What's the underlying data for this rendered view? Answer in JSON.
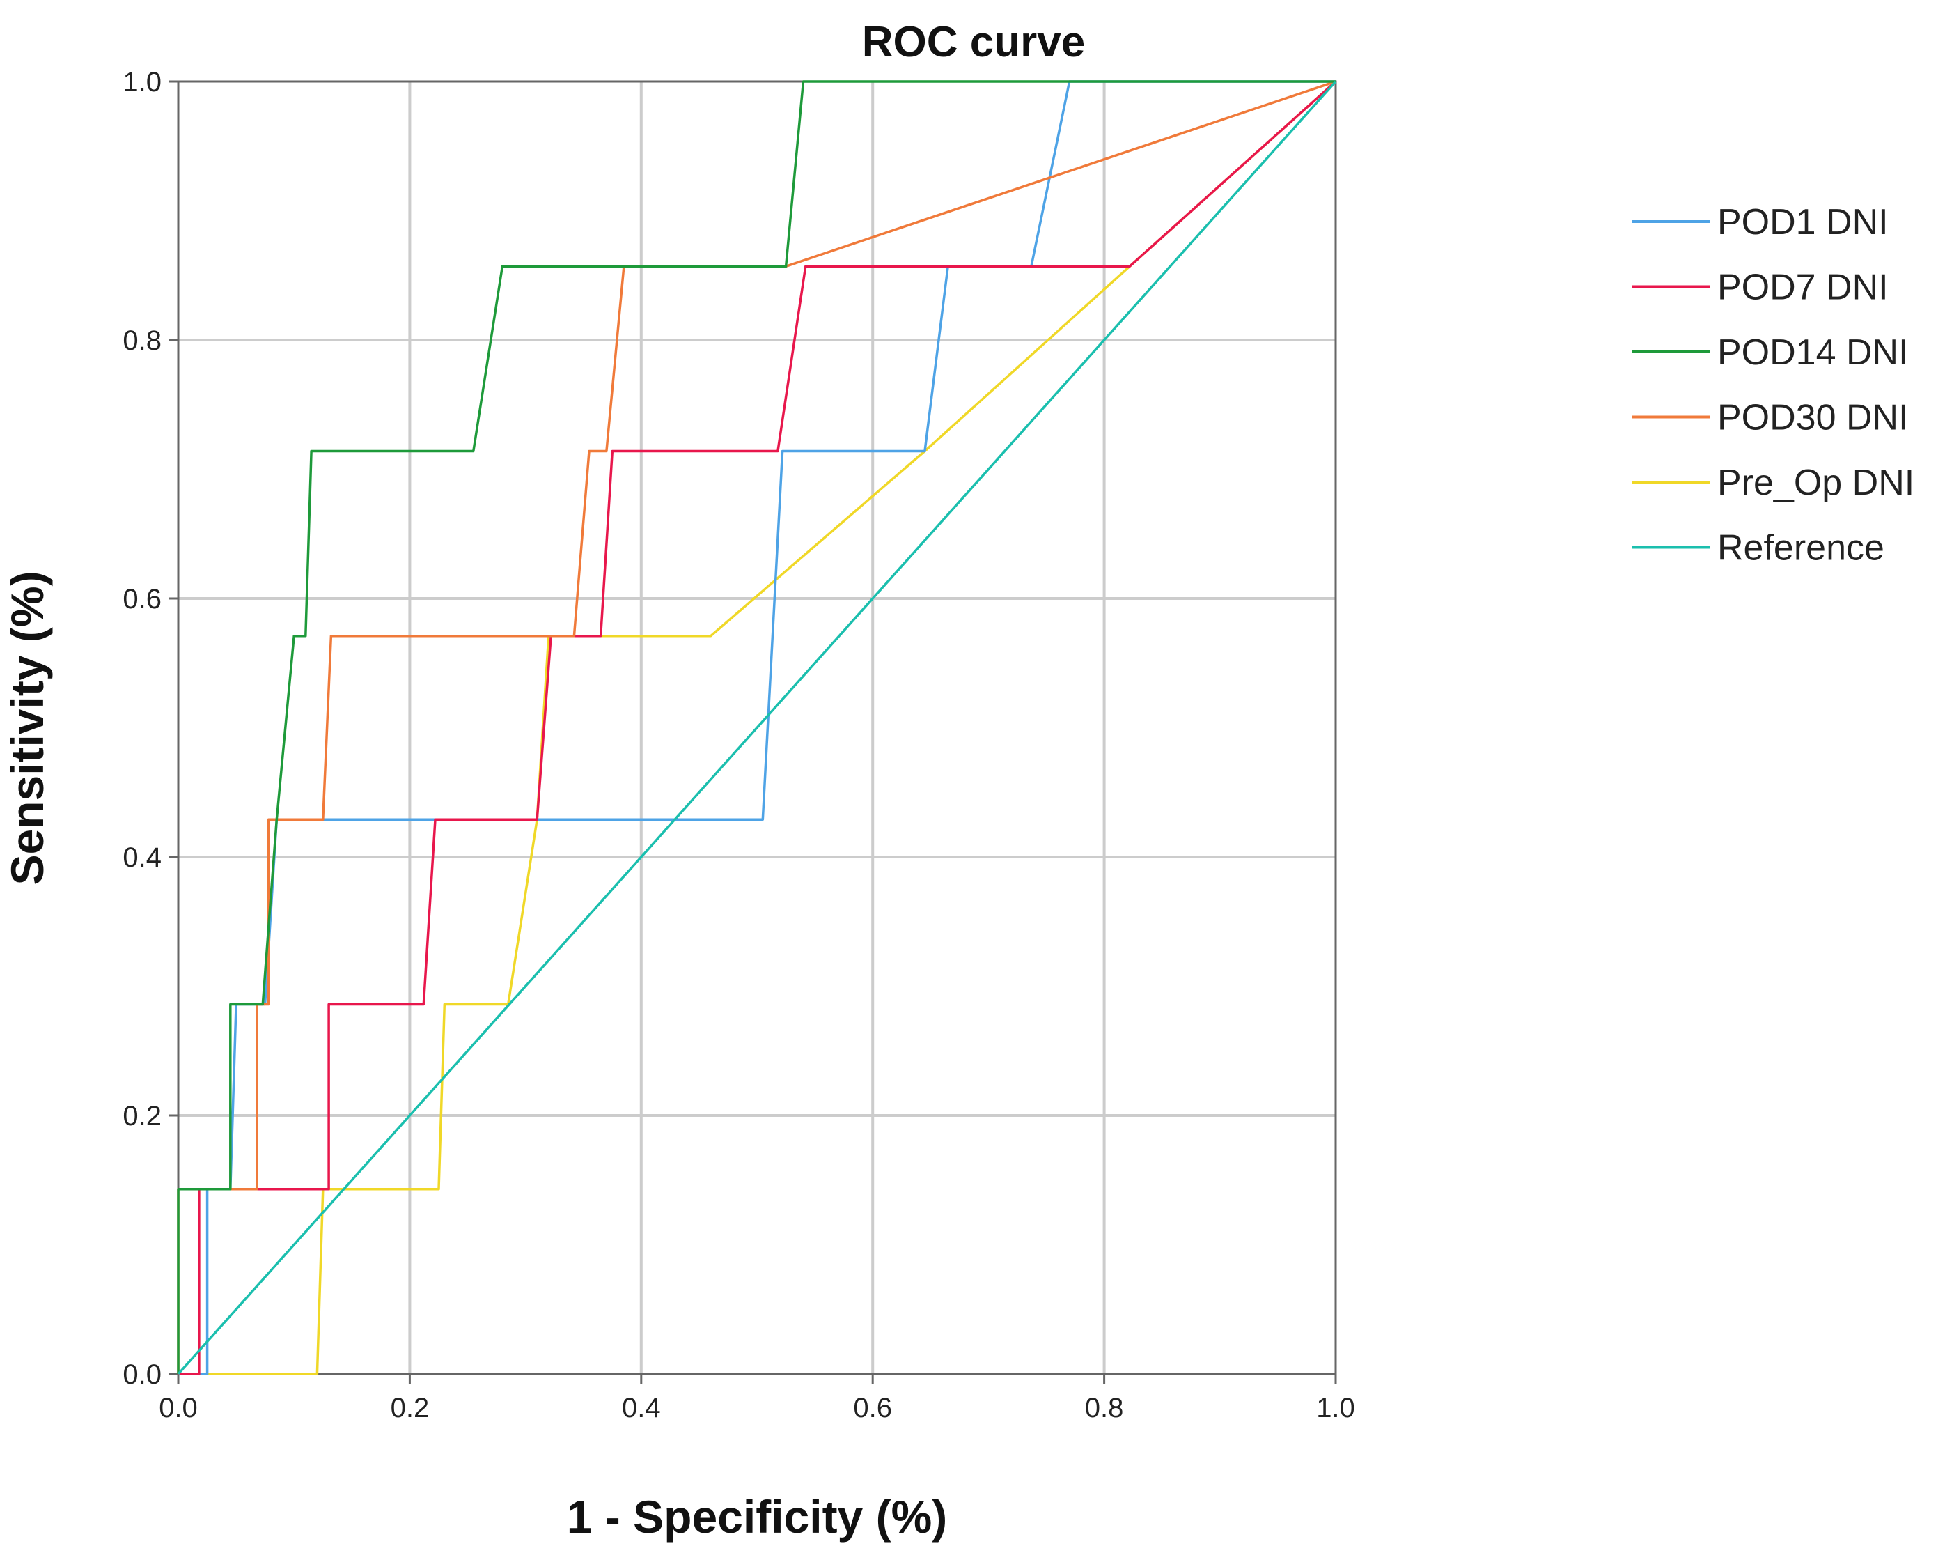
{
  "chart_data": {
    "type": "line",
    "title": "ROC curve",
    "xlabel": "1 - Specificity (%)",
    "ylabel": "Sensitivity (%)",
    "xlim": [
      0,
      1
    ],
    "ylim": [
      0,
      1
    ],
    "xticks": [
      "0.0",
      "0.2",
      "0.4",
      "0.6",
      "0.8",
      "1.0"
    ],
    "yticks": [
      "0.0",
      "0.2",
      "0.4",
      "0.6",
      "0.8",
      "1.0"
    ],
    "grid": true,
    "legend_position": "right",
    "series": [
      {
        "name": "POD1 DNI",
        "color": "#4ea3e6",
        "points": [
          [
            0,
            0
          ],
          [
            0.025,
            0
          ],
          [
            0.025,
            0.143
          ],
          [
            0.045,
            0.143
          ],
          [
            0.05,
            0.286
          ],
          [
            0.075,
            0.286
          ],
          [
            0.085,
            0.429
          ],
          [
            0.505,
            0.429
          ],
          [
            0.522,
            0.714
          ],
          [
            0.645,
            0.714
          ],
          [
            0.665,
            0.857
          ],
          [
            0.737,
            0.857
          ],
          [
            0.77,
            1.0
          ],
          [
            1.0,
            1.0
          ]
        ]
      },
      {
        "name": "POD7 DNI",
        "color": "#e8174c",
        "points": [
          [
            0,
            0
          ],
          [
            0.018,
            0
          ],
          [
            0.018,
            0.143
          ],
          [
            0.13,
            0.143
          ],
          [
            0.13,
            0.286
          ],
          [
            0.212,
            0.286
          ],
          [
            0.222,
            0.429
          ],
          [
            0.31,
            0.429
          ],
          [
            0.322,
            0.571
          ],
          [
            0.365,
            0.571
          ],
          [
            0.375,
            0.714
          ],
          [
            0.518,
            0.714
          ],
          [
            0.542,
            0.857
          ],
          [
            0.822,
            0.857
          ],
          [
            1.0,
            1.0
          ]
        ]
      },
      {
        "name": "POD14 DNI",
        "color": "#1e9a3a",
        "points": [
          [
            0,
            0
          ],
          [
            0,
            0.143
          ],
          [
            0.045,
            0.143
          ],
          [
            0.045,
            0.286
          ],
          [
            0.073,
            0.286
          ],
          [
            0.085,
            0.429
          ],
          [
            0.1,
            0.571
          ],
          [
            0.11,
            0.571
          ],
          [
            0.115,
            0.714
          ],
          [
            0.255,
            0.714
          ],
          [
            0.28,
            0.857
          ],
          [
            0.525,
            0.857
          ],
          [
            0.54,
            1.0
          ],
          [
            1.0,
            1.0
          ]
        ]
      },
      {
        "name": "POD30 DNI",
        "color": "#f07a3a",
        "points": [
          [
            0,
            0
          ],
          [
            0,
            0.143
          ],
          [
            0.068,
            0.143
          ],
          [
            0.068,
            0.286
          ],
          [
            0.078,
            0.286
          ],
          [
            0.078,
            0.429
          ],
          [
            0.125,
            0.429
          ],
          [
            0.132,
            0.571
          ],
          [
            0.342,
            0.571
          ],
          [
            0.355,
            0.714
          ],
          [
            0.37,
            0.714
          ],
          [
            0.385,
            0.857
          ],
          [
            0.525,
            0.857
          ],
          [
            1.0,
            1.0
          ]
        ]
      },
      {
        "name": "Pre_Op DNI",
        "color": "#f0d828",
        "points": [
          [
            0,
            0
          ],
          [
            0.12,
            0
          ],
          [
            0.125,
            0.143
          ],
          [
            0.225,
            0.143
          ],
          [
            0.23,
            0.286
          ],
          [
            0.285,
            0.286
          ],
          [
            0.31,
            0.429
          ],
          [
            0.32,
            0.571
          ],
          [
            0.46,
            0.571
          ],
          [
            0.645,
            0.714
          ],
          [
            0.822,
            0.857
          ],
          [
            1.0,
            1.0
          ]
        ]
      },
      {
        "name": "Reference",
        "color": "#1bbfae",
        "points": [
          [
            0,
            0
          ],
          [
            1,
            1
          ]
        ]
      }
    ]
  }
}
